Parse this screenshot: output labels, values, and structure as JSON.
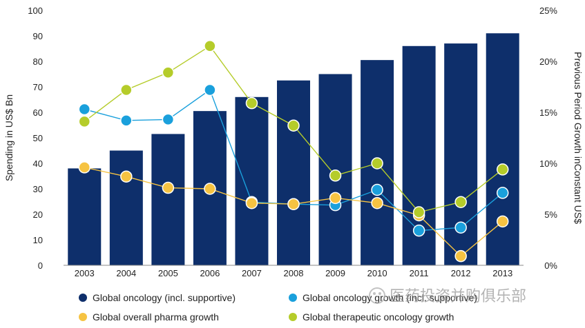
{
  "chart_data": {
    "type": "bar+line",
    "title": "",
    "categories": [
      "2003",
      "2004",
      "2005",
      "2006",
      "2007",
      "2008",
      "2009",
      "2010",
      "2011",
      "2012",
      "2013"
    ],
    "bar_series": {
      "name": "Global oncology (incl. supportive)",
      "axis": "left",
      "color": "#0e2f6b",
      "values": [
        38,
        45,
        51.5,
        60.5,
        66,
        72.5,
        75,
        80.5,
        86,
        87,
        91
      ]
    },
    "line_series": [
      {
        "name": "Global oncology growth (incl. supportive)",
        "axis": "right",
        "color": "#1aa0dc",
        "values": [
          15.3,
          14.2,
          14.3,
          17.2,
          6.2,
          6.0,
          5.9,
          7.4,
          3.4,
          3.7,
          7.1
        ]
      },
      {
        "name": "Global overall pharma growth",
        "axis": "right",
        "color": "#f6c342",
        "values": [
          9.6,
          8.7,
          7.6,
          7.5,
          6.1,
          6.0,
          6.6,
          6.1,
          4.9,
          0.9,
          4.3
        ]
      },
      {
        "name": "Global therapeutic oncology growth",
        "axis": "right",
        "color": "#b5cc2a",
        "values": [
          14.1,
          17.2,
          18.9,
          21.5,
          15.9,
          13.7,
          8.8,
          10.0,
          5.2,
          6.2,
          9.4
        ]
      }
    ],
    "y_left": {
      "label": "Spending in US$ Bn",
      "min": 0,
      "max": 100,
      "ticks": [
        "0",
        "10",
        "20",
        "30",
        "40",
        "50",
        "60",
        "70",
        "80",
        "90",
        "100"
      ]
    },
    "y_right": {
      "label": "Previous Period Growth inConstant  US$",
      "min": 0,
      "max": 25,
      "ticks": [
        "0%",
        "5%",
        "10%",
        "15%",
        "20%",
        "25%"
      ]
    },
    "grid": false,
    "legend_position": "bottom",
    "legend": [
      "Global oncology (incl. supportive)",
      "Global oncology growth (incl. supportive)",
      "Global overall pharma growth",
      "Global therapeutic oncology growth"
    ]
  },
  "watermark": "医药投资并购俱乐部"
}
